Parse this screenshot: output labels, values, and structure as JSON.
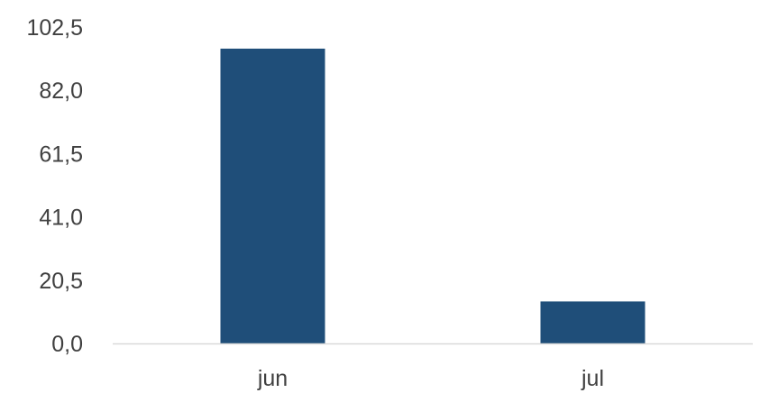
{
  "chart_data": {
    "type": "bar",
    "categories": [
      "jun",
      "jul"
    ],
    "values": [
      95.5,
      13.6
    ],
    "ylim": [
      0,
      102.5
    ],
    "yticks": [
      "0,0",
      "20,5",
      "41,0",
      "61,5",
      "82,0",
      "102,5"
    ],
    "bar_color": "#1F4E79",
    "axis_color": "#D9D9D9",
    "text_color": "#404040",
    "grid": false,
    "legend": "none"
  }
}
